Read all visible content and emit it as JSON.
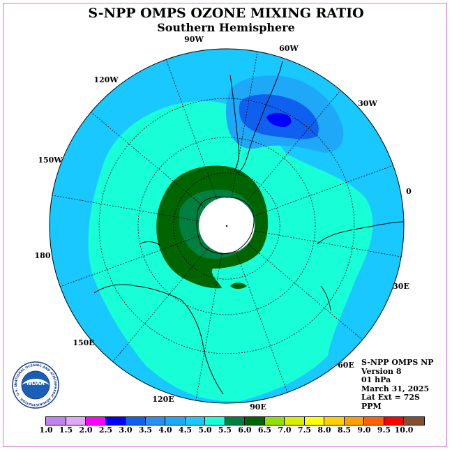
{
  "title": "S-NPP OMPS OZONE MIXING RATIO",
  "subtitle": "Southern Hemisphere",
  "longitude_labels": [
    "90W",
    "60W",
    "30W",
    "0",
    "30E",
    "60E",
    "90E",
    "120E",
    "150E",
    "180",
    "150W",
    "120W"
  ],
  "info": {
    "line1": "S-NPP OMPS NP",
    "line2": "Version 8",
    "line3": "01 hPa",
    "line4": "March 31, 2025",
    "line5": "Lat Ext = 72S",
    "line6": "PPM"
  },
  "logo": {
    "text": "NOAA",
    "ring_text": "NATIONAL OCEANIC AND ATMOSPHERIC ADMINISTRATION · U.S. DEPARTMENT OF COMMERCE"
  },
  "colorbar": {
    "labels": [
      "1.0",
      "1.5",
      "2.0",
      "2.5",
      "3.0",
      "3.5",
      "4.0",
      "4.5",
      "5.0",
      "5.5",
      "6.0",
      "6.5",
      "7.0",
      "7.5",
      "8.0",
      "8.5",
      "9.0",
      "9.5",
      "10.0"
    ],
    "colors": [
      "#c080f0",
      "#e0a8f8",
      "#ff00ff",
      "#0000ff",
      "#1060f0",
      "#2890f0",
      "#20a8f8",
      "#18c8ff",
      "#18ffd8",
      "#008040",
      "#006400",
      "#90e000",
      "#d8f000",
      "#ffff00",
      "#ffd000",
      "#ffa000",
      "#ff6000",
      "#ff0000",
      "#805030"
    ]
  },
  "field_colors": {
    "background_disk": "#18c8ff",
    "level_4_5_5_0": "#18ffd8",
    "level_5_5_6_0": "#006400",
    "level_5_0_5_5": "#008040",
    "level_3_5_4_0": "#20a8f8",
    "level_3_0_3_5": "#1060f0",
    "level_2_5_3_0": "#0000ff",
    "polar_missing": "#ffffff"
  }
}
